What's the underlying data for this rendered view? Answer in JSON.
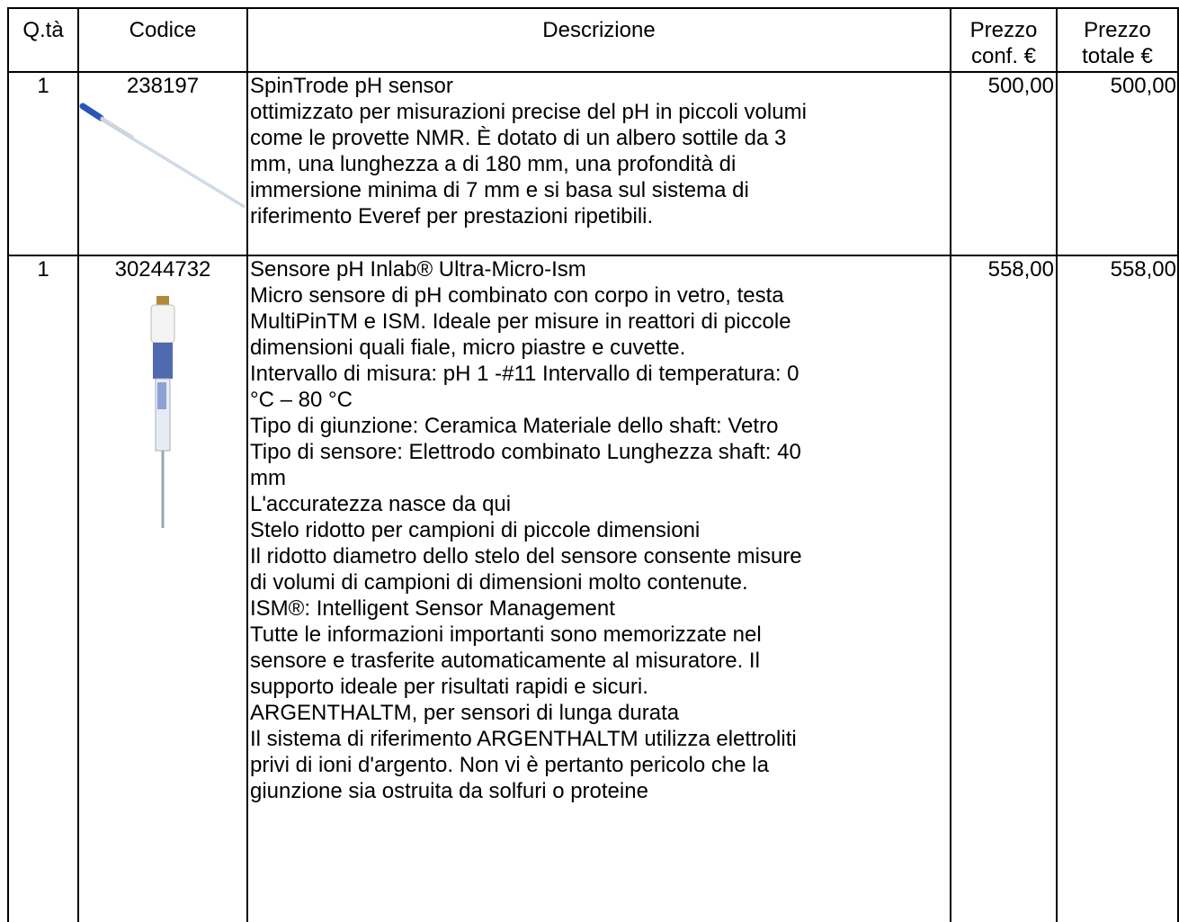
{
  "table": {
    "headers": [
      [
        "Q.tà"
      ],
      [
        "Codice"
      ],
      [
        "Descrizione"
      ],
      [
        "Prezzo",
        "conf. €"
      ],
      [
        "Prezzo",
        "totale €"
      ]
    ],
    "rows": [
      {
        "qty": "1",
        "code": "238197",
        "description": [
          "SpinTrode pH sensor",
          "ottimizzato per misurazioni precise del pH in piccoli volumi",
          "come le provette NMR. È dotato di un albero sottile da 3",
          "mm, una lunghezza a di 180 mm, una profondità di",
          "immersione minima di 7 mm e si basa sul sistema di",
          "riferimento Everef per prestazioni ripetibili."
        ],
        "unit_price": "500,00",
        "total_price": "500,00"
      },
      {
        "qty": "1",
        "code": "30244732",
        "description": [
          "Sensore pH Inlab® Ultra-Micro-Ism",
          "Micro sensore di pH combinato con corpo in vetro, testa",
          "MultiPinTM e ISM. Ideale per misure in reattori di piccole",
          "dimensioni quali fiale, micro piastre e cuvette.",
          "Intervallo di misura: pH 1 -#11 Intervallo di temperatura: 0",
          "°C – 80 °C",
          "Tipo di giunzione: Ceramica Materiale dello shaft: Vetro",
          "Tipo di sensore: Elettrodo combinato Lunghezza shaft: 40",
          "mm",
          "L'accuratezza nasce da qui",
          "Stelo ridotto per campioni di piccole dimensioni",
          "Il ridotto diametro dello stelo del sensore consente misure",
          "di volumi di campioni di dimensioni molto contenute.",
          "ISM®: Intelligent Sensor Management",
          "Tutte le informazioni importanti sono memorizzate nel",
          "sensore e trasferite automaticamente al misuratore. Il",
          "supporto ideale per risultati rapidi e sicuri.",
          "ARGENTHALTM, per sensori di lunga durata",
          "Il sistema di riferimento ARGENTHALTM utilizza elettroliti",
          "privi di ioni d'argento. Non vi è pertanto pericolo che la",
          "giunzione sia ostruita da solfuri o proteine"
        ],
        "unit_price": "558,00",
        "total_price": "558,00"
      }
    ]
  }
}
